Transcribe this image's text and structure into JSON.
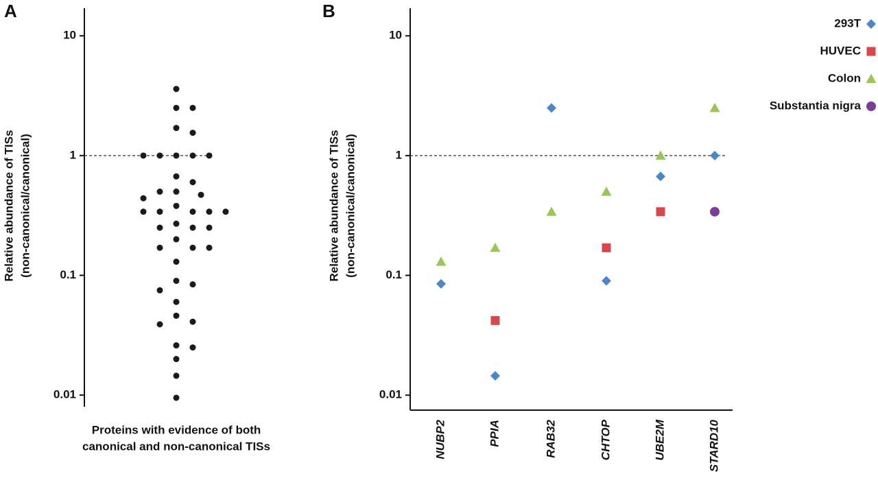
{
  "chart_data": [
    {
      "type": "swarm",
      "panel_label": "A",
      "ylabel": [
        "Relative abundance of TISs",
        "(non-canonical/canonical)"
      ],
      "xlabel": [
        "Proteins with evidence of both",
        "canonical and non-canonical TISs"
      ],
      "yscale": "log",
      "ylim": [
        0.008,
        17
      ],
      "yticks": [
        0.01,
        0.1,
        1,
        10
      ],
      "reference_line": 1,
      "color": "#1a1a1a",
      "values": [
        3.6,
        2.5,
        2.5,
        1.7,
        1.55,
        1,
        1,
        1,
        1,
        1,
        0.67,
        0.6,
        0.5,
        0.5,
        0.47,
        0.44,
        0.38,
        0.34,
        0.34,
        0.34,
        0.34,
        0.34,
        0.27,
        0.25,
        0.25,
        0.25,
        0.2,
        0.17,
        0.17,
        0.17,
        0.13,
        0.09,
        0.084,
        0.075,
        0.06,
        0.046,
        0.041,
        0.039,
        0.026,
        0.025,
        0.02,
        0.0145,
        0.0095
      ]
    },
    {
      "type": "scatter",
      "panel_label": "B",
      "ylabel": [
        "Relative abundance of TISs",
        "(non-canonical/canonical)"
      ],
      "yscale": "log",
      "ylim": [
        0.0075,
        17
      ],
      "yticks": [
        0.01,
        0.1,
        1,
        10
      ],
      "reference_line": 1,
      "legend": "top-right",
      "categories": [
        "NUBP2",
        "PPIA",
        "RAB32",
        "CHTOP",
        "UBE2M",
        "STARD10"
      ],
      "series": [
        {
          "name": "293T",
          "color": "#4a86c8",
          "marker": "diamond",
          "values": [
            0.085,
            0.0145,
            2.5,
            0.09,
            0.67,
            1
          ]
        },
        {
          "name": "HUVEC",
          "color": "#d9474b",
          "marker": "square",
          "values": [
            null,
            0.042,
            null,
            0.17,
            0.34,
            null
          ]
        },
        {
          "name": "Colon",
          "color": "#9dc45a",
          "marker": "triangle",
          "values": [
            0.13,
            0.17,
            0.34,
            0.5,
            1,
            2.5
          ]
        },
        {
          "name": "Substantia nigra",
          "color": "#7a3d98",
          "marker": "circle",
          "values": [
            null,
            null,
            null,
            null,
            null,
            0.34
          ]
        }
      ]
    }
  ]
}
